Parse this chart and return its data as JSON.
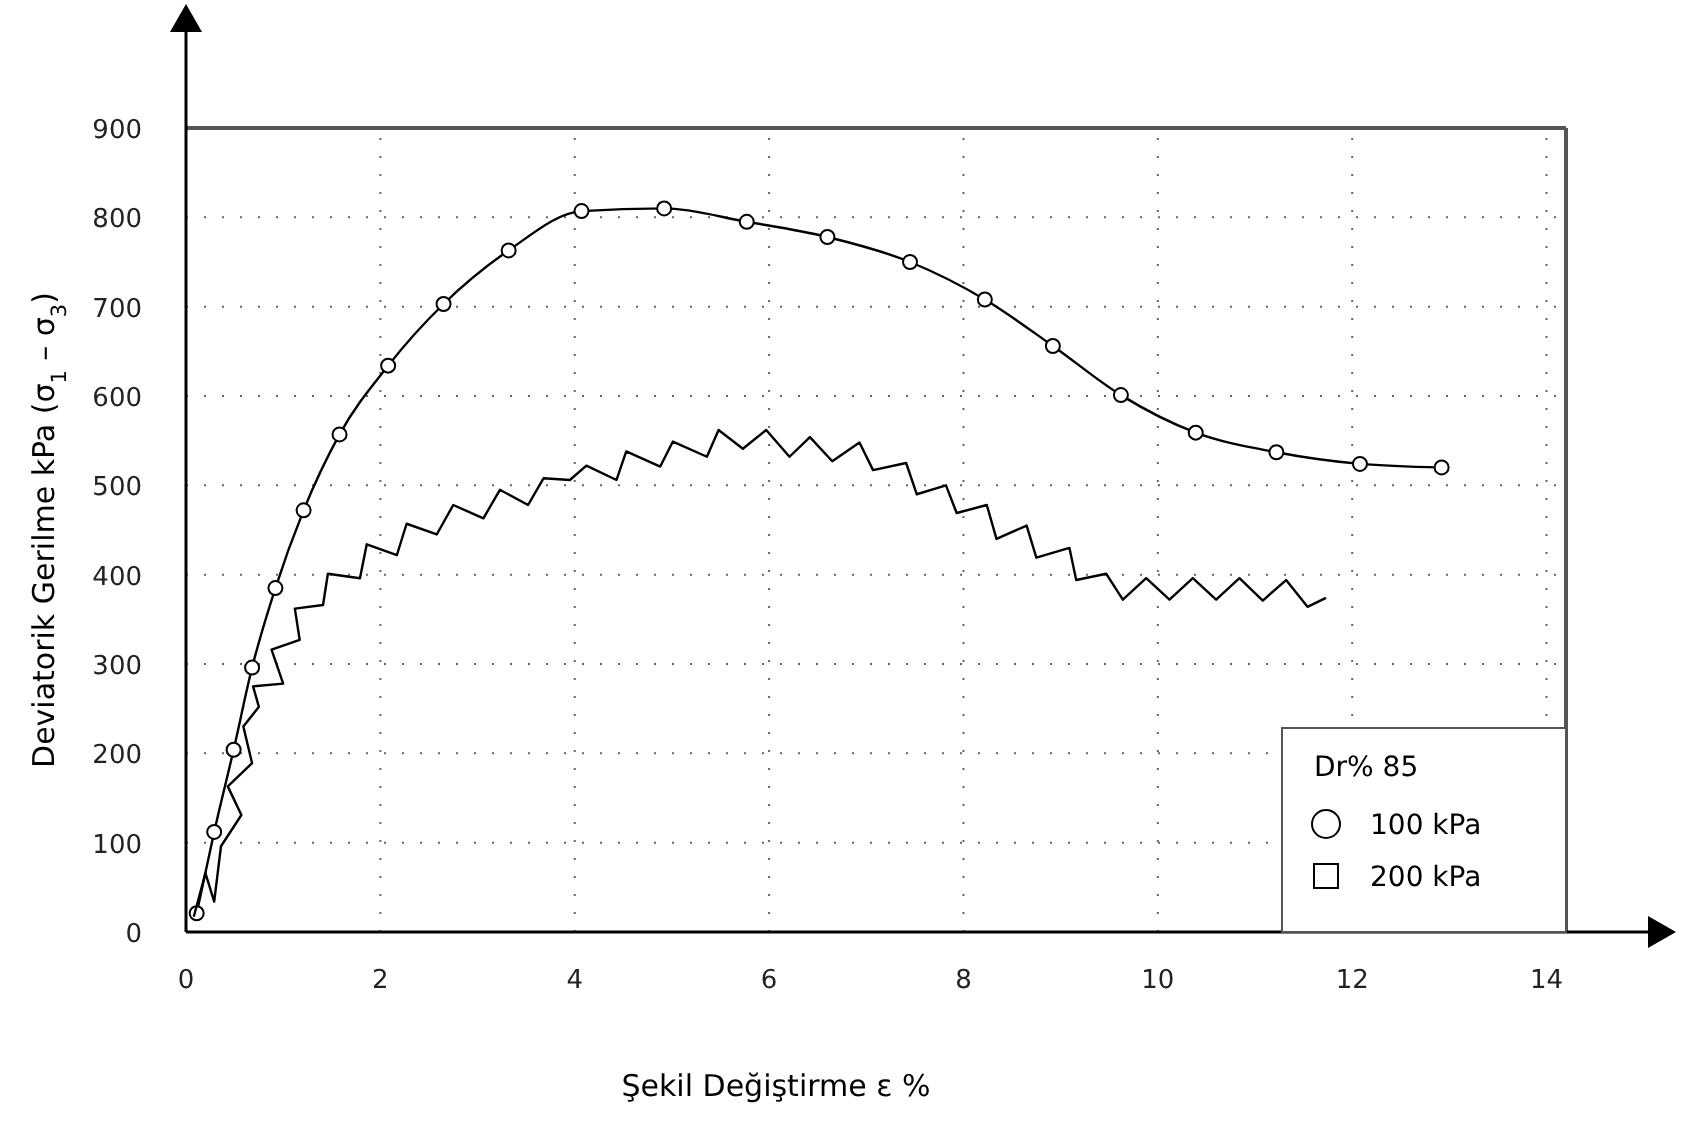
{
  "chart_data": {
    "type": "line",
    "xlabel": "Şekil Değiştirme ε %",
    "ylabel": "Deviatorik Gerilme kPa (σ$_{1}$ – σ$_{3}$)",
    "legend_title": "Dr% 85",
    "legend": "bottom right",
    "grid": true,
    "xlim": [
      0,
      14.2
    ],
    "ylim": [
      0,
      900
    ],
    "xticks": [
      0,
      2,
      4,
      6,
      8,
      10,
      12,
      14
    ],
    "yticks": [
      0,
      100,
      200,
      300,
      400,
      500,
      600,
      700,
      800,
      900
    ],
    "series": [
      {
        "name": "100 kPa",
        "color": "#000000",
        "marker": "circle",
        "line_style": "solid",
        "x": [
          0.11,
          0.29,
          0.49,
          0.68,
          0.92,
          1.21,
          1.58,
          2.08,
          2.65,
          3.32,
          4.07,
          4.92,
          5.77,
          6.6,
          7.45,
          8.22,
          8.92,
          9.62,
          10.39,
          11.22,
          12.08,
          12.92
        ],
        "values": [
          21,
          112,
          204,
          296,
          385,
          472,
          557,
          634,
          703,
          763,
          807,
          810,
          795,
          778,
          750,
          708,
          656,
          601,
          559,
          537,
          524,
          520
        ]
      },
      {
        "name": "200 kPa",
        "color": "#000000",
        "marker": "none",
        "line_style": "solid",
        "x": [
          0.08,
          0.2,
          0.29,
          0.36,
          0.57,
          0.43,
          0.68,
          0.59,
          0.75,
          0.69,
          1.0,
          0.88,
          1.17,
          1.12,
          1.41,
          1.46,
          1.79,
          1.86,
          2.17,
          2.27,
          2.58,
          2.75,
          3.06,
          3.23,
          3.52,
          3.68,
          3.95,
          4.12,
          4.43,
          4.53,
          4.88,
          5.01,
          5.36,
          5.48,
          5.73,
          5.97,
          6.21,
          6.42,
          6.65,
          6.93,
          7.07,
          7.41,
          7.52,
          7.82,
          7.93,
          8.24,
          8.34,
          8.65,
          8.75,
          9.09,
          9.16,
          9.47,
          9.64,
          9.88,
          10.12,
          10.36,
          10.6,
          10.84,
          11.08,
          11.32,
          11.54,
          11.73
        ],
        "values": [
          17,
          66,
          34,
          96,
          131,
          163,
          189,
          230,
          252,
          275,
          278,
          316,
          327,
          362,
          366,
          401,
          396,
          434,
          422,
          457,
          445,
          478,
          463,
          495,
          478,
          508,
          506,
          522,
          506,
          538,
          521,
          549,
          532,
          562,
          541,
          562,
          532,
          554,
          527,
          548,
          517,
          525,
          490,
          500,
          469,
          478,
          440,
          455,
          419,
          430,
          394,
          401,
          372,
          396,
          372,
          396,
          372,
          396,
          371,
          394,
          364,
          374
        ]
      }
    ]
  }
}
